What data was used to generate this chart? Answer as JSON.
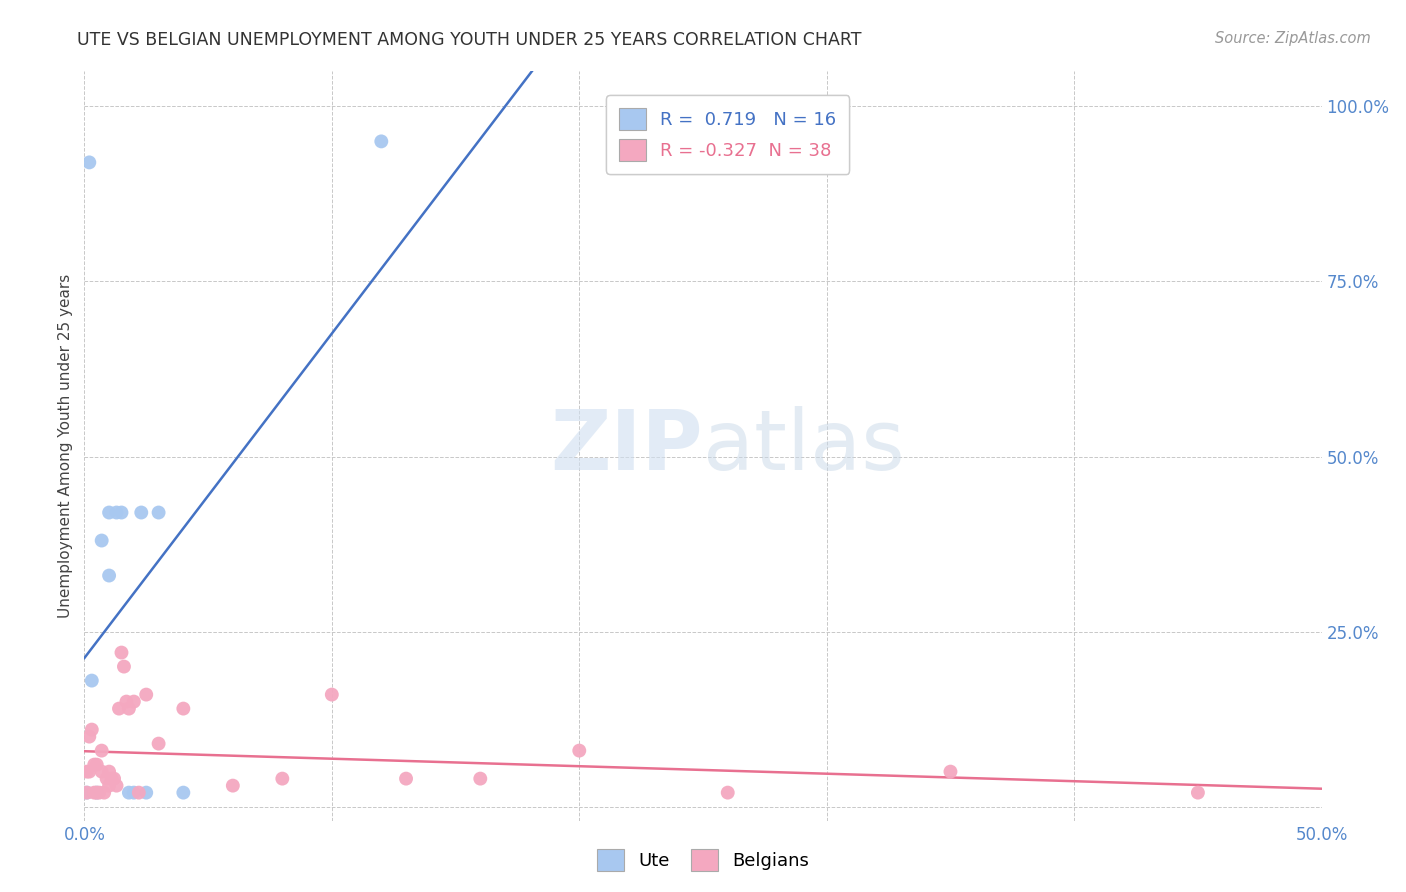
{
  "title": "UTE VS BELGIAN UNEMPLOYMENT AMONG YOUTH UNDER 25 YEARS CORRELATION CHART",
  "source": "Source: ZipAtlas.com",
  "ylabel": "Unemployment Among Youth under 25 years",
  "xlim": [
    0,
    0.5
  ],
  "ylim": [
    -0.02,
    1.05
  ],
  "xtick_positions": [
    0.0,
    0.1,
    0.2,
    0.3,
    0.4,
    0.5
  ],
  "xtick_labels": [
    "0.0%",
    "",
    "",
    "",
    "",
    "50.0%"
  ],
  "ytick_positions": [
    0.0,
    0.25,
    0.5,
    0.75,
    1.0
  ],
  "ytick_labels": [
    "",
    "25.0%",
    "50.0%",
    "75.0%",
    "100.0%"
  ],
  "ute_color": "#a8c8f0",
  "belgian_color": "#f4a8c0",
  "ute_line_color": "#4472c4",
  "belgian_line_color": "#e87090",
  "R_ute": 0.719,
  "N_ute": 16,
  "R_belgian": -0.327,
  "N_belgian": 38,
  "background_color": "#ffffff",
  "grid_color": "#c8c8c8",
  "watermark": "ZIPatlas",
  "ute_x": [
    0.001,
    0.003,
    0.005,
    0.007,
    0.01,
    0.01,
    0.013,
    0.015,
    0.018,
    0.02,
    0.023,
    0.025,
    0.03,
    0.002,
    0.04,
    0.12
  ],
  "ute_y": [
    0.02,
    0.18,
    0.02,
    0.38,
    0.33,
    0.42,
    0.42,
    0.42,
    0.02,
    0.02,
    0.42,
    0.02,
    0.42,
    0.92,
    0.02,
    0.95
  ],
  "belgian_x": [
    0.001,
    0.001,
    0.002,
    0.002,
    0.003,
    0.004,
    0.004,
    0.005,
    0.005,
    0.006,
    0.007,
    0.007,
    0.008,
    0.009,
    0.01,
    0.01,
    0.011,
    0.012,
    0.013,
    0.014,
    0.015,
    0.016,
    0.017,
    0.018,
    0.02,
    0.022,
    0.025,
    0.03,
    0.04,
    0.06,
    0.08,
    0.1,
    0.13,
    0.16,
    0.2,
    0.26,
    0.35,
    0.45
  ],
  "belgian_y": [
    0.02,
    0.05,
    0.05,
    0.1,
    0.11,
    0.02,
    0.06,
    0.02,
    0.06,
    0.02,
    0.05,
    0.08,
    0.02,
    0.04,
    0.03,
    0.05,
    0.04,
    0.04,
    0.03,
    0.14,
    0.22,
    0.2,
    0.15,
    0.14,
    0.15,
    0.02,
    0.16,
    0.09,
    0.14,
    0.03,
    0.04,
    0.16,
    0.04,
    0.04,
    0.08,
    0.02,
    0.05,
    0.02
  ]
}
